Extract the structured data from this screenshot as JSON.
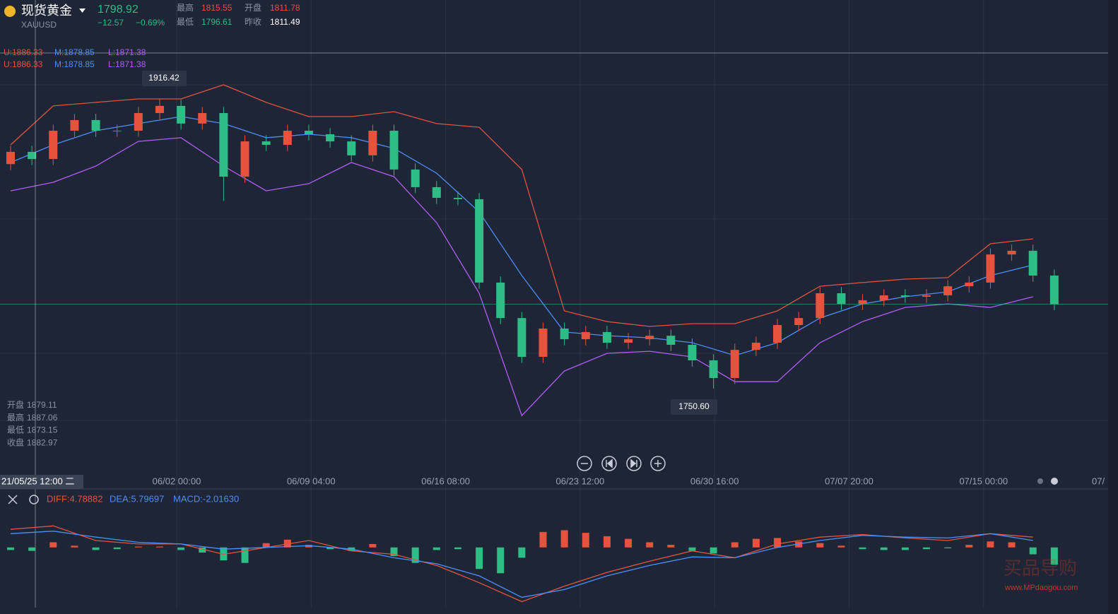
{
  "header": {
    "name": "现货黄金",
    "symbol": "XAUUSD",
    "price": "1798.92",
    "change": "−12.57",
    "change_pct": "−0.69%",
    "high_label": "最高",
    "high": "1815.55",
    "open_label": "开盘",
    "open": "1811.78",
    "low_label": "最低",
    "low": "1796.61",
    "prev_label": "昨收",
    "prev": "1811.49"
  },
  "boll_legend": [
    {
      "u": "U:1886.33",
      "m": "M:1878.85",
      "l": "L:1871.38"
    },
    {
      "u": "U:1886.33",
      "m": "M:1878.85",
      "l": "L:1871.38"
    }
  ],
  "crosshair": {
    "time": "21/05/25 12:00 二",
    "rows": [
      {
        "label": "开盘",
        "value": "1879.11"
      },
      {
        "label": "最高",
        "value": "1887.06"
      },
      {
        "label": "最低",
        "value": "1873.15"
      },
      {
        "label": "收盘",
        "value": "1882.97"
      }
    ]
  },
  "markers": {
    "max": "1916.42",
    "min": "1750.60"
  },
  "time_labels": [
    "06/02 00:00",
    "06/09 04:00",
    "06/16 08:00",
    "06/23 12:00",
    "06/30 16:00",
    "07/07 20:00",
    "07/15 00:00"
  ],
  "time_label_cut": "07/",
  "macd_legend": {
    "diff": "DIFF:4.78882",
    "dea": "DEA:5.79697",
    "macd": "MACD:-2.01630"
  },
  "watermark": {
    "logo": "买品导购",
    "url": "www.MPdaogou.com"
  },
  "chart": {
    "type": "candlestick",
    "ylim": [
      1701.3,
      1973.0
    ],
    "grid_values": [
      1924.5,
      1847.7,
      1770.8,
      1732.4
    ],
    "up_color": "#e5533f",
    "down_color": "#2dbd85",
    "open": [
      1879.1,
      1886.1,
      1882.0,
      1898.2,
      1904.3,
      1898.2,
      1898.2,
      1908.3,
      1912.4,
      1902.3,
      1908.3,
      1871.9,
      1892.1,
      1890.1,
      1898.2,
      1896.2,
      1892.1,
      1884.1,
      1898.2,
      1876.0,
      1865.9,
      1859.8,
      1859.0,
      1811.3,
      1791.0,
      1768.8,
      1785.0,
      1778.9,
      1783.0,
      1776.9,
      1778.9,
      1780.9,
      1775.7,
      1766.8,
      1756.7,
      1772.8,
      1776.9,
      1787.0,
      1791.0,
      1805.2,
      1799.1,
      1801.2,
      1804.0,
      1803.2,
      1804.0,
      1809.2,
      1811.3,
      1827.4,
      1829.5,
      1815.3
    ],
    "high": [
      1889.6,
      1889.6,
      1901.7,
      1907.8,
      1907.8,
      1901.7,
      1911.8,
      1916.42,
      1915.9,
      1911.8,
      1911.8,
      1895.6,
      1895.6,
      1901.7,
      1901.7,
      1899.7,
      1895.6,
      1901.7,
      1901.7,
      1879.5,
      1869.4,
      1863.3,
      1862.5,
      1814.8,
      1794.5,
      1788.5,
      1788.5,
      1786.5,
      1786.5,
      1782.4,
      1784.4,
      1784.4,
      1779.2,
      1770.3,
      1776.3,
      1780.4,
      1790.5,
      1794.5,
      1808.7,
      1808.7,
      1804.7,
      1807.5,
      1807.5,
      1807.5,
      1812.7,
      1814.8,
      1830.9,
      1833.0,
      1833.0,
      1818.8
    ],
    "low": [
      1875.6,
      1878.5,
      1878.5,
      1894.7,
      1894.7,
      1894.7,
      1894.7,
      1904.8,
      1898.8,
      1898.8,
      1858.0,
      1868.4,
      1886.6,
      1886.6,
      1892.7,
      1888.6,
      1880.6,
      1880.6,
      1872.5,
      1862.4,
      1856.3,
      1855.5,
      1807.8,
      1787.5,
      1765.3,
      1765.3,
      1775.4,
      1775.4,
      1773.4,
      1773.4,
      1775.4,
      1772.2,
      1763.3,
      1750.6,
      1753.2,
      1769.3,
      1773.4,
      1783.5,
      1787.5,
      1795.6,
      1795.6,
      1797.7,
      1799.7,
      1799.7,
      1800.5,
      1805.7,
      1807.8,
      1823.9,
      1811.8,
      1795.4
    ],
    "close": [
      1886.1,
      1882.0,
      1898.2,
      1904.3,
      1898.2,
      1898.2,
      1908.3,
      1912.4,
      1902.3,
      1908.3,
      1871.9,
      1892.1,
      1890.1,
      1898.2,
      1896.2,
      1892.1,
      1884.1,
      1898.2,
      1876.0,
      1865.9,
      1859.8,
      1859.0,
      1811.3,
      1791.0,
      1768.8,
      1785.0,
      1778.9,
      1783.0,
      1776.9,
      1778.9,
      1780.9,
      1775.7,
      1766.8,
      1756.7,
      1772.8,
      1776.9,
      1787.0,
      1791.0,
      1805.2,
      1799.1,
      1801.2,
      1804.0,
      1803.2,
      1804.0,
      1809.2,
      1811.3,
      1827.4,
      1829.5,
      1815.3,
      1798.92
    ],
    "bands": [
      {
        "color": "#e0553f",
        "values": [
          1890.1,
          1912.4,
          1914.4,
          1916.4,
          1916.4,
          1924.5,
          1914.4,
          1906.3,
          1906.3,
          1909.1,
          1902.3,
          1900.2,
          1876.0,
          1795.1,
          1789.0,
          1786.2,
          1787.8,
          1787.8,
          1795.1,
          1809.2,
          1811.3,
          1813.3,
          1814.1,
          1833.5,
          1836.3
        ]
      },
      {
        "color": "#4e8ef7",
        "values": [
          1880.0,
          1890.1,
          1898.2,
          1902.3,
          1906.3,
          1902.3,
          1894.2,
          1896.2,
          1894.2,
          1888.1,
          1873.9,
          1851.7,
          1815.3,
          1783.0,
          1780.9,
          1779.7,
          1776.9,
          1769.6,
          1776.9,
          1791.0,
          1799.1,
          1803.2,
          1806.0,
          1815.3,
          1821.4
        ]
      },
      {
        "color": "#b15ef5",
        "values": [
          1863.8,
          1868.7,
          1878.0,
          1892.1,
          1894.2,
          1878.0,
          1863.8,
          1867.9,
          1880.0,
          1871.9,
          1845.6,
          1805.2,
          1735.2,
          1760.7,
          1770.8,
          1772.0,
          1768.8,
          1754.6,
          1754.6,
          1776.9,
          1789.0,
          1797.1,
          1799.1,
          1797.1,
          1803.2
        ]
      }
    ]
  },
  "macd": {
    "type": "bar",
    "ylim": [
      -7,
      4.5
    ],
    "hist": [
      -0.3,
      -0.4,
      0.6,
      0.2,
      -0.3,
      -0.2,
      0.1,
      0.1,
      -0.3,
      -0.6,
      -1.5,
      -1.8,
      0.5,
      0.9,
      0.3,
      -0.2,
      -0.4,
      0.4,
      -1.0,
      -1.8,
      -0.3,
      -0.2,
      -2.5,
      -3.0,
      -1.2,
      1.8,
      2.0,
      1.7,
      1.3,
      1.0,
      0.6,
      0.3,
      -0.4,
      -0.7,
      0.6,
      1.0,
      1.1,
      0.7,
      0.5,
      0.2,
      -0.2,
      -0.3,
      -0.3,
      -0.2,
      -0.1,
      0.3,
      0.7,
      0.6,
      -0.8,
      -2.0
    ],
    "lines": [
      {
        "color": "#e0553f",
        "values": [
          2.1,
          2.5,
          0.8,
          0.4,
          0.4,
          -0.8,
          0,
          0.8,
          -0.4,
          -0.8,
          -2.1,
          -4.1,
          -6.3,
          -4.5,
          -2.9,
          -1.6,
          -0.4,
          -1.2,
          0.4,
          1.2,
          1.5,
          1.1,
          0.8,
          1.6,
          1.2
        ]
      },
      {
        "color": "#4e8ef7",
        "values": [
          1.6,
          1.9,
          1.2,
          0.6,
          0.4,
          -0.2,
          0,
          0.2,
          -0.2,
          -1.2,
          -1.9,
          -3.3,
          -5.8,
          -4.9,
          -3.3,
          -2.1,
          -1.1,
          -1.2,
          0,
          0.8,
          1.4,
          1.2,
          1.1,
          1.6,
          0.8
        ]
      }
    ]
  }
}
